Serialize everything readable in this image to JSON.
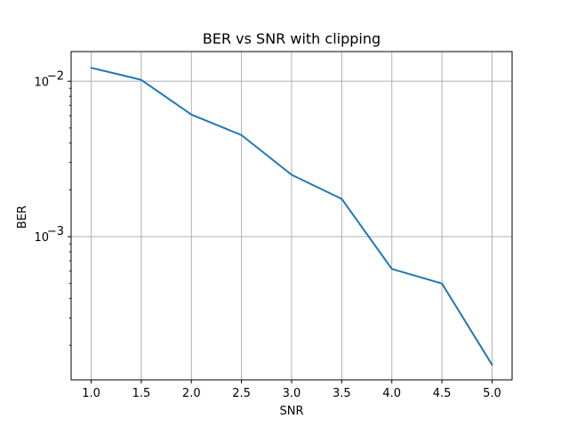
{
  "chart_data": {
    "type": "line",
    "title": "BER vs SNR with clipping",
    "xlabel": "SNR",
    "ylabel": "BER",
    "yscale": "log",
    "grid": true,
    "xlim": [
      0.8,
      5.2
    ],
    "ylim": [
      0.00012,
      0.0155
    ],
    "x_ticks": [
      1.0,
      1.5,
      2.0,
      2.5,
      3.0,
      3.5,
      4.0,
      4.5,
      5.0
    ],
    "x_tick_labels": [
      "1.0",
      "1.5",
      "2.0",
      "2.5",
      "3.0",
      "3.5",
      "4.0",
      "4.5",
      "5.0"
    ],
    "y_ticks": [
      0.001,
      0.01
    ],
    "y_tick_labels": [
      {
        "base": "10",
        "exp": "−3"
      },
      {
        "base": "10",
        "exp": "−2"
      }
    ],
    "series": [
      {
        "color": "#1f77b4",
        "x": [
          1.0,
          1.5,
          2.0,
          2.5,
          3.0,
          3.5,
          4.0,
          4.5,
          5.0
        ],
        "y": [
          0.0122,
          0.0102,
          0.0061,
          0.0045,
          0.0025,
          0.00175,
          0.00062,
          0.0005,
          0.00015
        ]
      }
    ]
  }
}
